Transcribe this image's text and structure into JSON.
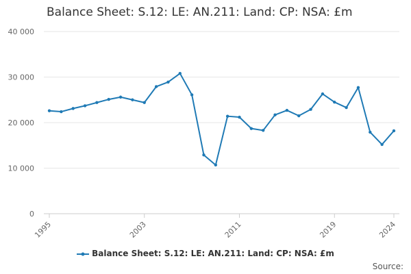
{
  "chart_data": {
    "type": "line",
    "title": "Balance Sheet: S.12: LE: AN.211: Land: CP: NSA: £m",
    "xlabel": "",
    "ylabel": "",
    "x": [
      1995,
      1996,
      1997,
      1998,
      1999,
      2000,
      2001,
      2002,
      2003,
      2004,
      2005,
      2006,
      2007,
      2008,
      2009,
      2010,
      2011,
      2012,
      2013,
      2014,
      2015,
      2016,
      2017,
      2018,
      2019,
      2020,
      2021,
      2022,
      2023,
      2024
    ],
    "series": [
      {
        "name": "Balance Sheet: S.12: LE: AN.211: Land: CP: NSA: £m",
        "values": [
          22600,
          22400,
          23100,
          23700,
          24400,
          25100,
          25600,
          25000,
          24400,
          27900,
          28900,
          30800,
          26100,
          12900,
          10700,
          21400,
          21200,
          18700,
          18300,
          21700,
          22700,
          21500,
          22900,
          26300,
          24500,
          23300,
          27700,
          17900,
          15200,
          18200
        ]
      }
    ],
    "ylim": [
      0,
      40000
    ],
    "yticks": [
      0,
      10000,
      20000,
      30000,
      40000
    ],
    "ytick_labels": [
      "0",
      "10 000",
      "20 000",
      "30 000",
      "40 000"
    ],
    "xticks": [
      1995,
      2003,
      2011,
      2019,
      2024
    ],
    "xtick_labels": [
      "1995",
      "2003",
      "2011",
      "2019",
      "2024"
    ],
    "grid": true,
    "legend": "bottom",
    "line_color": "#1f7ab5"
  },
  "footer": {
    "source_label": "Source:"
  }
}
